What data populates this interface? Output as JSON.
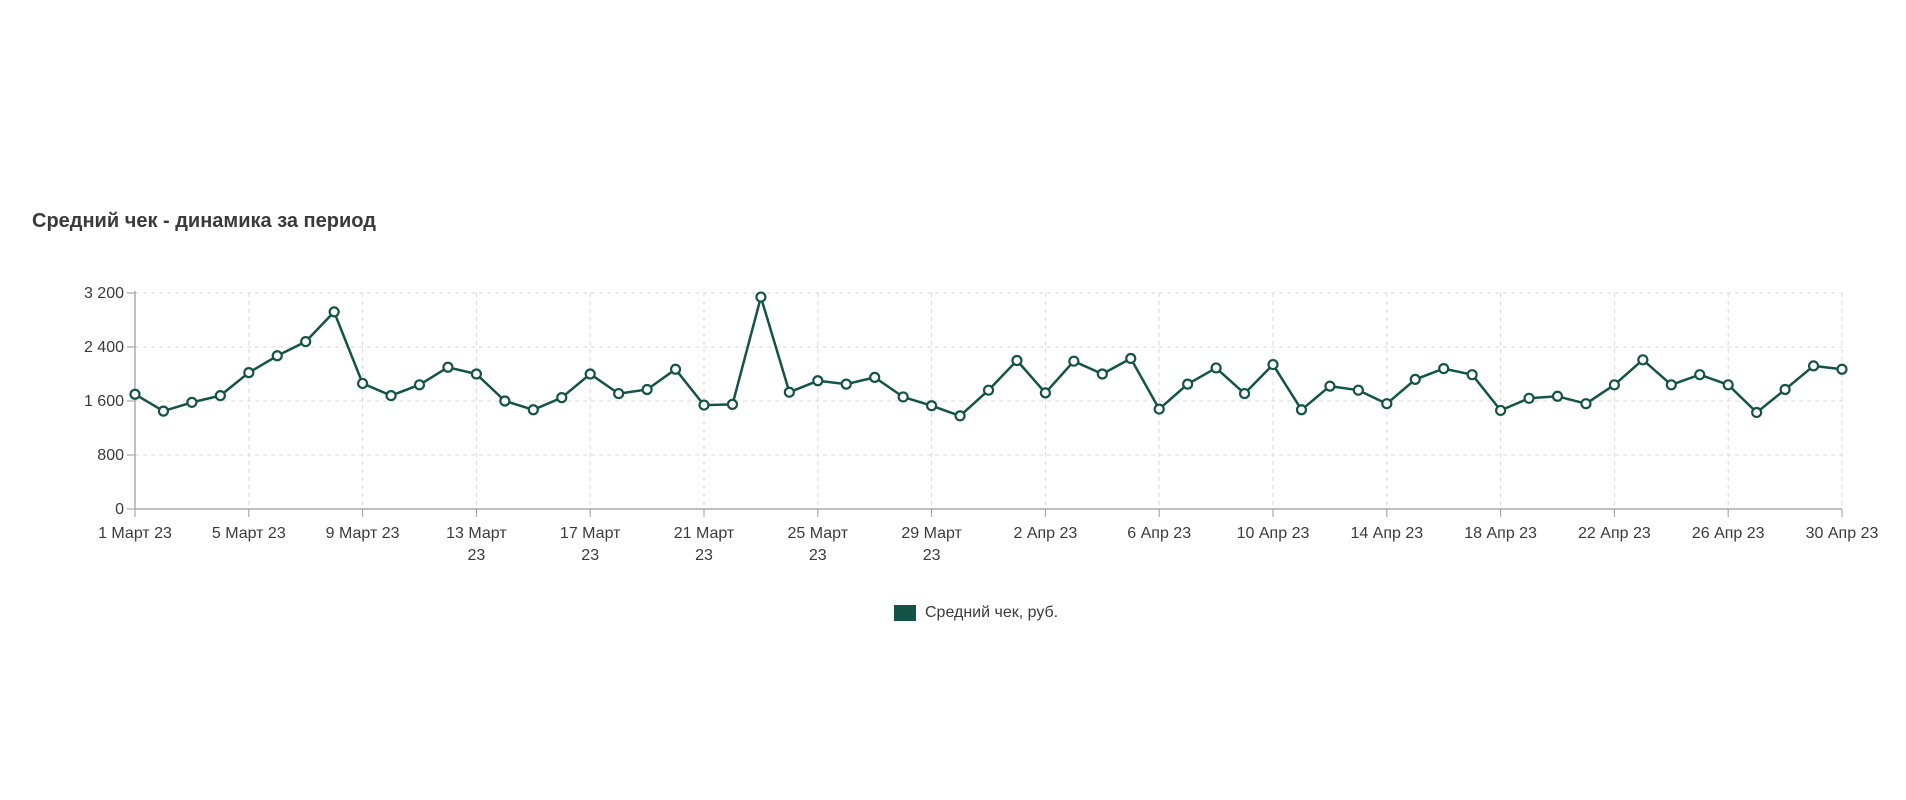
{
  "colors": {
    "series": "#135446",
    "marker_fill": "#ffffff",
    "grid": "#d8d8d8",
    "axis": "#9a9a9a",
    "text": "#3a3a3a"
  },
  "chart_data": {
    "type": "line",
    "title": "Средний чек - динамика за период",
    "xlabel": "",
    "ylabel": "",
    "ylim": [
      0,
      3200
    ],
    "yticks": [
      {
        "value": 0,
        "label": "0"
      },
      {
        "value": 800,
        "label": "800"
      },
      {
        "value": 1600,
        "label": "1 600"
      },
      {
        "value": 2400,
        "label": "2 400"
      },
      {
        "value": 3200,
        "label": "3 200"
      }
    ],
    "xticks": [
      {
        "index": 0,
        "lines": [
          "1 Март 23"
        ]
      },
      {
        "index": 4,
        "lines": [
          "5 Март 23"
        ]
      },
      {
        "index": 8,
        "lines": [
          "9 Март 23"
        ]
      },
      {
        "index": 12,
        "lines": [
          "13 Март",
          "23"
        ]
      },
      {
        "index": 16,
        "lines": [
          "17 Март",
          "23"
        ]
      },
      {
        "index": 20,
        "lines": [
          "21 Март",
          "23"
        ]
      },
      {
        "index": 24,
        "lines": [
          "25 Март",
          "23"
        ]
      },
      {
        "index": 28,
        "lines": [
          "29 Март",
          "23"
        ]
      },
      {
        "index": 32,
        "lines": [
          "2 Апр 23"
        ]
      },
      {
        "index": 36,
        "lines": [
          "6 Апр 23"
        ]
      },
      {
        "index": 40,
        "lines": [
          "10 Апр 23"
        ]
      },
      {
        "index": 44,
        "lines": [
          "14 Апр 23"
        ]
      },
      {
        "index": 48,
        "lines": [
          "18 Апр 23"
        ]
      },
      {
        "index": 52,
        "lines": [
          "22 Апр 23"
        ]
      },
      {
        "index": 56,
        "lines": [
          "26 Апр 23"
        ]
      },
      {
        "index": 60,
        "lines": [
          "30 Апр 23"
        ]
      }
    ],
    "grid": true,
    "legend_position": "bottom",
    "series": [
      {
        "name": "Средний чек, руб.",
        "values": [
          1700,
          1450,
          1580,
          1680,
          2020,
          2270,
          2480,
          2920,
          1860,
          1680,
          1840,
          2100,
          2000,
          1600,
          1470,
          1650,
          2000,
          1710,
          1770,
          2070,
          1540,
          1550,
          3140,
          1730,
          1900,
          1850,
          1950,
          1660,
          1530,
          1380,
          1760,
          2200,
          1720,
          2190,
          2000,
          2230,
          1480,
          1850,
          2090,
          1710,
          2140,
          1470,
          1820,
          1760,
          1560,
          1920,
          2080,
          1990,
          1460,
          1640,
          1670,
          1560,
          1840,
          2210,
          1840,
          1990,
          1840,
          1430,
          1770,
          2120,
          2070
        ]
      }
    ]
  }
}
